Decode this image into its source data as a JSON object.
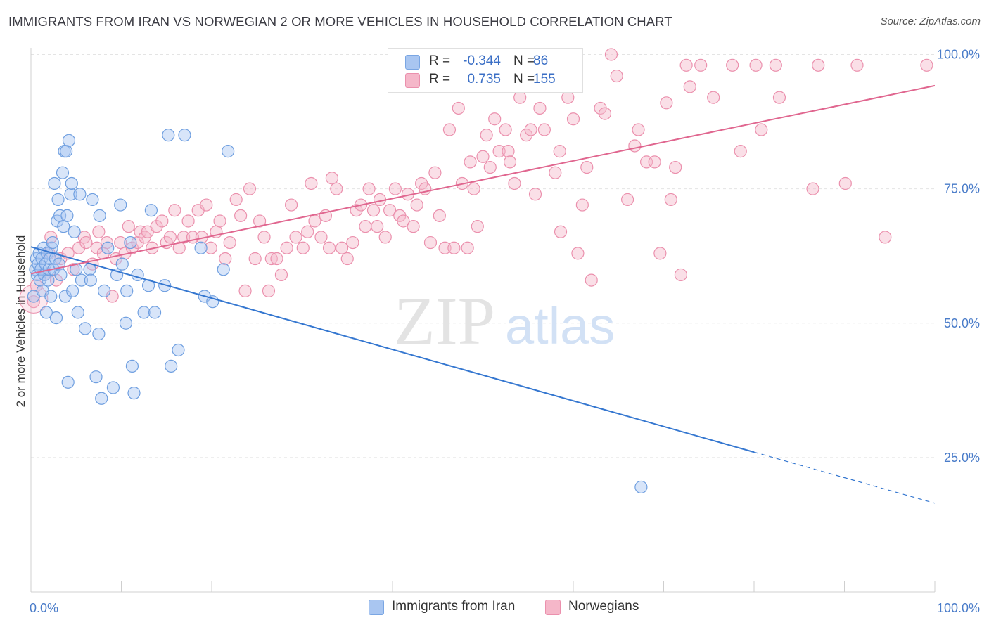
{
  "title": "IMMIGRANTS FROM IRAN VS NORWEGIAN 2 OR MORE VEHICLES IN HOUSEHOLD CORRELATION CHART",
  "source": "Source: ZipAtlas.com",
  "watermark": {
    "zip": "ZIP",
    "atlas": "atlas"
  },
  "legend": {
    "rows": [
      {
        "r_label": "R =",
        "r_value": "-0.344",
        "n_label": "N =",
        "n_value": "86",
        "color": "#a9c6f1"
      },
      {
        "r_label": "R =",
        "r_value": "0.735",
        "n_label": "N =",
        "n_value": "155",
        "color": "#f5b7c9"
      }
    ]
  },
  "bottom_legend": [
    {
      "label": "Immigrants from Iran",
      "color": "#a9c6f1"
    },
    {
      "label": "Norwegians",
      "color": "#f5b7c9"
    }
  ],
  "chart_data": {
    "type": "scatter",
    "xlabel": "",
    "ylabel": "2 or more Vehicles in Household",
    "xlim": [
      0,
      100
    ],
    "ylim": [
      0,
      102
    ],
    "x_tick_labels": [
      {
        "value": 0,
        "label": "0.0%"
      },
      {
        "value": 100,
        "label": "100.0%"
      }
    ],
    "y_tick_labels": [
      {
        "value": 25,
        "label": "25.0%"
      },
      {
        "value": 50,
        "label": "50.0%"
      },
      {
        "value": 75,
        "label": "75.0%"
      },
      {
        "value": 100,
        "label": "100.0%"
      }
    ],
    "grid": true,
    "legend_position": "top-center",
    "series": [
      {
        "name": "Immigrants from Iran",
        "color": "#4a86d8",
        "fill": "#a9c6f1",
        "trend": {
          "x0": 0,
          "y0": 64.2,
          "x1": 80,
          "y1": 26.0,
          "dash_to_x": 100,
          "dash_to_y": 16.5,
          "color": "#3577d0"
        },
        "points": [
          [
            0.3,
            55
          ],
          [
            0.5,
            60
          ],
          [
            0.6,
            62
          ],
          [
            0.7,
            59
          ],
          [
            0.8,
            61
          ],
          [
            0.9,
            63
          ],
          [
            1.0,
            58
          ],
          [
            1.1,
            60
          ],
          [
            1.2,
            62
          ],
          [
            1.3,
            56
          ],
          [
            1.4,
            64
          ],
          [
            1.5,
            59
          ],
          [
            1.6,
            61
          ],
          [
            1.7,
            52
          ],
          [
            1.8,
            63
          ],
          [
            1.9,
            58
          ],
          [
            2.0,
            60
          ],
          [
            2.1,
            62
          ],
          [
            2.2,
            55
          ],
          [
            2.3,
            64
          ],
          [
            2.4,
            65
          ],
          [
            2.5,
            60
          ],
          [
            2.6,
            76
          ],
          [
            2.7,
            62
          ],
          [
            2.8,
            51
          ],
          [
            2.9,
            69
          ],
          [
            3.0,
            73
          ],
          [
            3.1,
            61
          ],
          [
            3.2,
            70
          ],
          [
            3.3,
            59
          ],
          [
            3.5,
            78
          ],
          [
            3.6,
            68
          ],
          [
            3.7,
            82
          ],
          [
            3.8,
            55
          ],
          [
            3.9,
            82
          ],
          [
            4.0,
            70
          ],
          [
            4.1,
            39
          ],
          [
            4.2,
            84
          ],
          [
            4.4,
            74
          ],
          [
            4.5,
            76
          ],
          [
            4.6,
            56
          ],
          [
            4.8,
            67
          ],
          [
            5.0,
            60
          ],
          [
            5.2,
            52
          ],
          [
            5.4,
            74
          ],
          [
            5.6,
            58
          ],
          [
            6.0,
            49
          ],
          [
            6.5,
            60
          ],
          [
            6.6,
            58
          ],
          [
            6.8,
            73
          ],
          [
            7.2,
            40
          ],
          [
            7.5,
            48
          ],
          [
            7.6,
            70
          ],
          [
            7.8,
            36
          ],
          [
            8.1,
            56
          ],
          [
            8.5,
            64
          ],
          [
            9.1,
            38
          ],
          [
            9.5,
            59
          ],
          [
            9.9,
            72
          ],
          [
            10.1,
            61
          ],
          [
            10.5,
            50
          ],
          [
            10.6,
            56
          ],
          [
            11.0,
            65
          ],
          [
            11.2,
            42
          ],
          [
            11.4,
            37
          ],
          [
            11.8,
            59
          ],
          [
            12.5,
            52
          ],
          [
            13.0,
            57
          ],
          [
            13.3,
            71
          ],
          [
            13.7,
            52
          ],
          [
            14.8,
            57
          ],
          [
            15.2,
            85
          ],
          [
            15.5,
            42
          ],
          [
            16.3,
            45
          ],
          [
            17.0,
            85
          ],
          [
            18.8,
            64
          ],
          [
            19.2,
            55
          ],
          [
            20.1,
            54
          ],
          [
            21.3,
            60
          ],
          [
            21.8,
            82
          ],
          [
            67.5,
            19.5
          ]
        ]
      },
      {
        "name": "Norwegians",
        "color": "#e36a95",
        "fill": "#f5b7c9",
        "trend": {
          "x0": 0,
          "y0": 59.2,
          "x1": 100,
          "y1": 94.2,
          "color": "#e0668f"
        },
        "points": [
          [
            0.3,
            54
          ],
          [
            0.6,
            57
          ],
          [
            1.5,
            59
          ],
          [
            2.0,
            63
          ],
          [
            2.2,
            66
          ],
          [
            2.8,
            58
          ],
          [
            3.3,
            62
          ],
          [
            4.1,
            63
          ],
          [
            4.7,
            60
          ],
          [
            5.3,
            64
          ],
          [
            5.9,
            66
          ],
          [
            6.1,
            65
          ],
          [
            6.8,
            61
          ],
          [
            7.3,
            64
          ],
          [
            7.5,
            67
          ],
          [
            8.0,
            63
          ],
          [
            8.4,
            65
          ],
          [
            9.0,
            55
          ],
          [
            9.4,
            62
          ],
          [
            9.9,
            65
          ],
          [
            10.4,
            63
          ],
          [
            10.8,
            68
          ],
          [
            11.2,
            64
          ],
          [
            11.8,
            65
          ],
          [
            12.1,
            67
          ],
          [
            12.6,
            66
          ],
          [
            12.9,
            67
          ],
          [
            13.4,
            64
          ],
          [
            13.9,
            68
          ],
          [
            14.5,
            69
          ],
          [
            15.0,
            65
          ],
          [
            15.4,
            66
          ],
          [
            15.9,
            71
          ],
          [
            16.4,
            64
          ],
          [
            16.9,
            66
          ],
          [
            17.4,
            69
          ],
          [
            17.9,
            66
          ],
          [
            18.5,
            71
          ],
          [
            18.9,
            66
          ],
          [
            19.4,
            72
          ],
          [
            19.9,
            64
          ],
          [
            20.5,
            67
          ],
          [
            20.9,
            69
          ],
          [
            21.5,
            62
          ],
          [
            22.0,
            65
          ],
          [
            22.7,
            73
          ],
          [
            23.2,
            70
          ],
          [
            23.7,
            56
          ],
          [
            24.2,
            75
          ],
          [
            24.8,
            62
          ],
          [
            25.3,
            69
          ],
          [
            25.8,
            66
          ],
          [
            26.3,
            56
          ],
          [
            26.6,
            62
          ],
          [
            27.2,
            62
          ],
          [
            27.7,
            59
          ],
          [
            28.3,
            64
          ],
          [
            28.8,
            72
          ],
          [
            29.3,
            66
          ],
          [
            30.1,
            64
          ],
          [
            30.6,
            67
          ],
          [
            31.0,
            76
          ],
          [
            31.4,
            69
          ],
          [
            32.1,
            66
          ],
          [
            32.6,
            70
          ],
          [
            33.0,
            64
          ],
          [
            33.3,
            77
          ],
          [
            33.8,
            75
          ],
          [
            34.4,
            64
          ],
          [
            35.0,
            62
          ],
          [
            35.6,
            65
          ],
          [
            36.0,
            71
          ],
          [
            36.5,
            72
          ],
          [
            37.0,
            68
          ],
          [
            37.4,
            75
          ],
          [
            37.9,
            71
          ],
          [
            38.3,
            68
          ],
          [
            38.6,
            73
          ],
          [
            39.2,
            66
          ],
          [
            39.7,
            71
          ],
          [
            40.3,
            75
          ],
          [
            40.8,
            70
          ],
          [
            41.2,
            69
          ],
          [
            41.7,
            74
          ],
          [
            42.3,
            68
          ],
          [
            42.7,
            72
          ],
          [
            43.2,
            76
          ],
          [
            43.6,
            75
          ],
          [
            44.2,
            65
          ],
          [
            44.7,
            78
          ],
          [
            45.2,
            70
          ],
          [
            45.8,
            64
          ],
          [
            46.3,
            86
          ],
          [
            46.8,
            64
          ],
          [
            47.3,
            90
          ],
          [
            47.7,
            76
          ],
          [
            48.3,
            64
          ],
          [
            48.6,
            80
          ],
          [
            49.0,
            75
          ],
          [
            49.4,
            68
          ],
          [
            50.0,
            81
          ],
          [
            50.4,
            85
          ],
          [
            50.8,
            79
          ],
          [
            51.3,
            88
          ],
          [
            51.8,
            82
          ],
          [
            52.5,
            86
          ],
          [
            52.8,
            82
          ],
          [
            53.0,
            80
          ],
          [
            53.5,
            76
          ],
          [
            54.1,
            92
          ],
          [
            54.8,
            85
          ],
          [
            55.3,
            86
          ],
          [
            55.8,
            74
          ],
          [
            56.3,
            90
          ],
          [
            56.8,
            86
          ],
          [
            57.0,
            98
          ],
          [
            58.0,
            78
          ],
          [
            58.5,
            82
          ],
          [
            58.6,
            67
          ],
          [
            59.4,
            92
          ],
          [
            60.0,
            88
          ],
          [
            60.5,
            63
          ],
          [
            61.0,
            72
          ],
          [
            61.5,
            79
          ],
          [
            62.0,
            58
          ],
          [
            63.0,
            90
          ],
          [
            63.5,
            89
          ],
          [
            64.2,
            100
          ],
          [
            64.8,
            96
          ],
          [
            66.0,
            73
          ],
          [
            66.8,
            83
          ],
          [
            67.2,
            86
          ],
          [
            68.1,
            80
          ],
          [
            69.0,
            80
          ],
          [
            69.6,
            63
          ],
          [
            70.3,
            91
          ],
          [
            70.8,
            73
          ],
          [
            71.3,
            79
          ],
          [
            71.9,
            59
          ],
          [
            72.5,
            98
          ],
          [
            72.9,
            94
          ],
          [
            74.1,
            98
          ],
          [
            75.5,
            92
          ],
          [
            77.6,
            98
          ],
          [
            78.5,
            82
          ],
          [
            80.2,
            98
          ],
          [
            80.8,
            86
          ],
          [
            82.4,
            98
          ],
          [
            82.8,
            92
          ],
          [
            86.5,
            75
          ],
          [
            87.1,
            98
          ],
          [
            91.4,
            98
          ],
          [
            94.5,
            66
          ],
          [
            99.1,
            98
          ],
          [
            90.1,
            76
          ]
        ]
      }
    ]
  }
}
